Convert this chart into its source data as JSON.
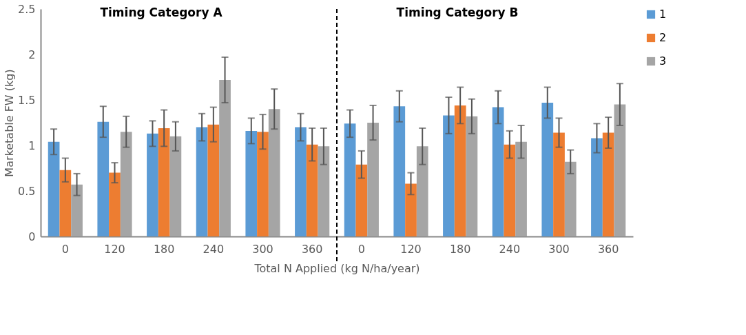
{
  "chart_data": {
    "type": "bar",
    "xlabel": "Total N Applied (kg N/ha/year)",
    "ylabel": "Marketable FW (kg)",
    "categories": [
      "0",
      "120",
      "180",
      "240",
      "300",
      "360",
      "0",
      "120",
      "180",
      "240",
      "300",
      "360"
    ],
    "series": [
      {
        "name": "1",
        "color": "#5b9bd5",
        "values": [
          1.04,
          1.26,
          1.13,
          1.2,
          1.16,
          1.2,
          1.24,
          1.43,
          1.33,
          1.42,
          1.47,
          1.08
        ],
        "errors": [
          0.14,
          0.17,
          0.14,
          0.15,
          0.14,
          0.15,
          0.15,
          0.17,
          0.2,
          0.18,
          0.17,
          0.16
        ]
      },
      {
        "name": "2",
        "color": "#ed7d31",
        "values": [
          0.73,
          0.7,
          1.19,
          1.23,
          1.15,
          1.01,
          0.79,
          0.58,
          1.44,
          1.01,
          1.14,
          1.14
        ],
        "errors": [
          0.13,
          0.11,
          0.2,
          0.19,
          0.19,
          0.18,
          0.15,
          0.12,
          0.2,
          0.15,
          0.16,
          0.17
        ]
      },
      {
        "name": "3",
        "color": "#a5a5a5",
        "values": [
          0.57,
          1.15,
          1.1,
          1.72,
          1.4,
          0.99,
          1.25,
          0.99,
          1.32,
          1.04,
          0.82,
          1.45
        ],
        "errors": [
          0.12,
          0.17,
          0.16,
          0.25,
          0.22,
          0.2,
          0.19,
          0.2,
          0.19,
          0.18,
          0.13,
          0.23
        ]
      }
    ],
    "ylim": [
      0,
      2.5
    ],
    "yticks": [
      0,
      0.5,
      1,
      1.5,
      2,
      2.5
    ],
    "grid": false,
    "legend": "right",
    "annotations": [
      "Timing Category A",
      "Timing Category B"
    ]
  }
}
